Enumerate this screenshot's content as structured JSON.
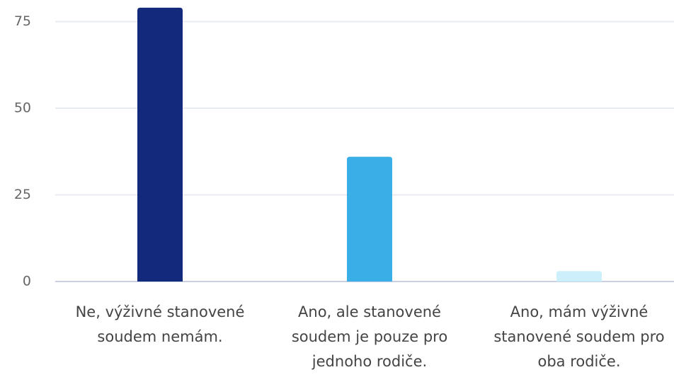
{
  "chart_data": {
    "type": "bar",
    "categories": [
      "Ne, výživné stanovené soudem nemám.",
      "Ano, ale stanovené soudem je pouze pro jednoho rodiče.",
      "Ano, mám výživné stanovené soudem pro oba rodiče."
    ],
    "values": [
      79,
      36,
      3
    ],
    "colors": [
      "#12297c",
      "#3aaee6",
      "#cdeefb"
    ],
    "ylim": [
      0,
      80
    ],
    "yticks": [
      0,
      25,
      50,
      75
    ],
    "grid": true
  }
}
